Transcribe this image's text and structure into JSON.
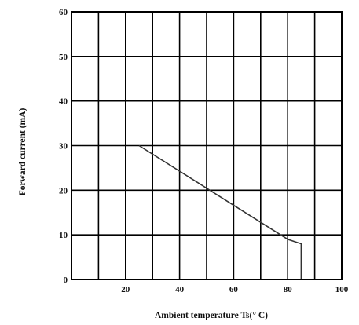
{
  "chart_data": {
    "type": "line",
    "xlabel": "Ambient temperature Ts(° C)",
    "ylabel": "Forward current (mA)",
    "xlim": [
      0,
      100
    ],
    "ylim": [
      0,
      60
    ],
    "x_ticks": [
      10,
      20,
      30,
      40,
      50,
      60,
      70,
      80,
      90,
      100
    ],
    "x_tick_labels": [
      "",
      "20",
      "",
      "40",
      "",
      "60",
      "",
      "80",
      "",
      "100"
    ],
    "y_ticks": [
      0,
      10,
      20,
      30,
      40,
      50,
      60
    ],
    "y_tick_labels": [
      "0",
      "10",
      "20",
      "30",
      "40",
      "50",
      "60"
    ],
    "grid": true,
    "series": [
      {
        "x": [
          25,
          80,
          85,
          85
        ],
        "y": [
          30,
          9,
          8,
          0
        ],
        "color": "#333333"
      }
    ]
  }
}
